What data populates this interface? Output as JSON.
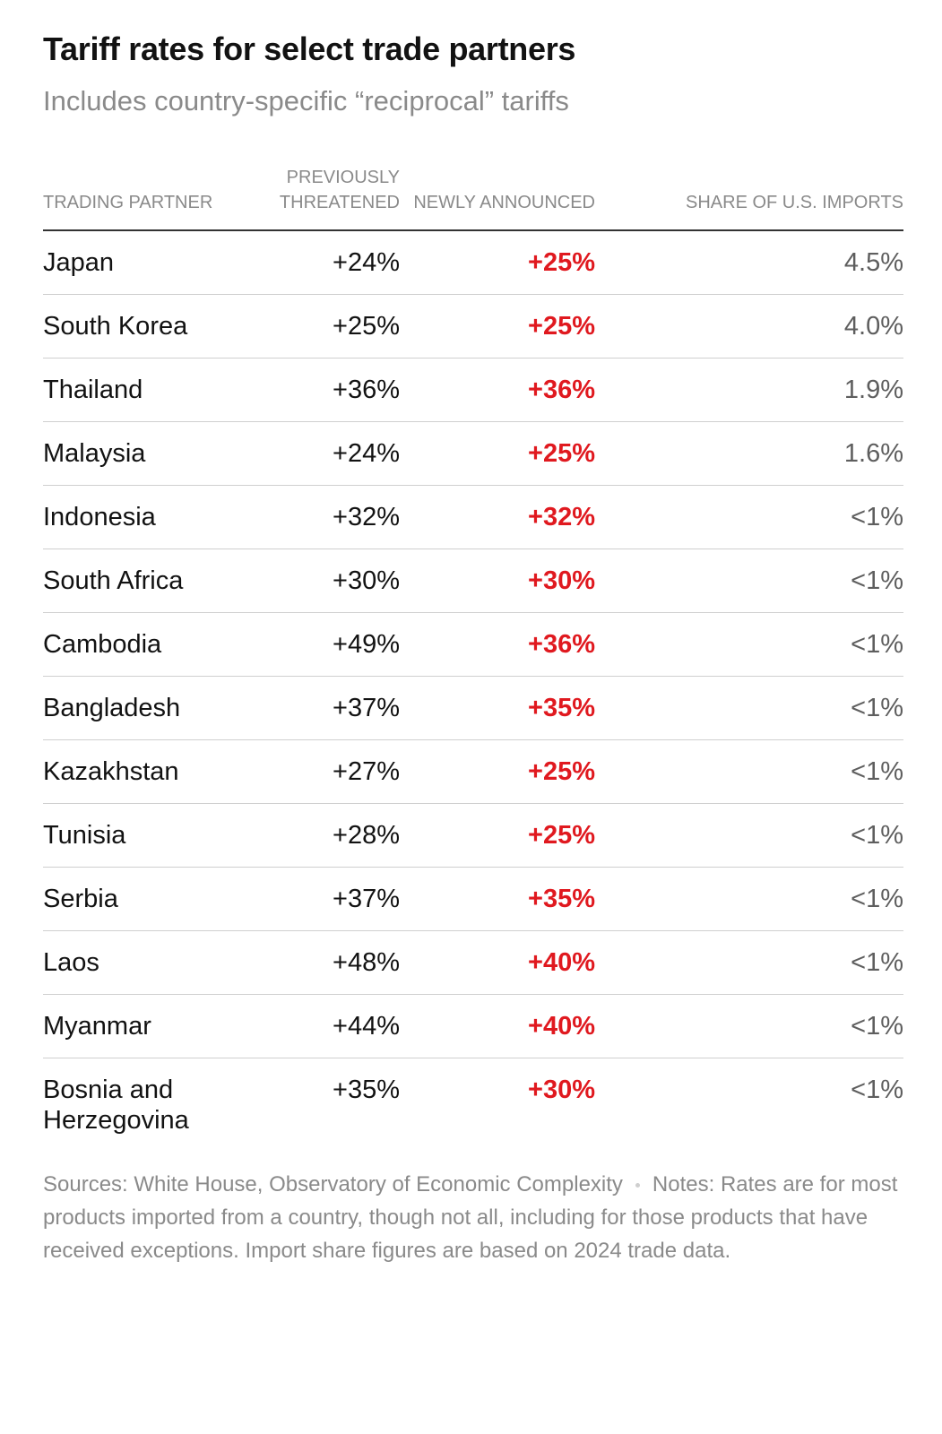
{
  "chart_data": {
    "type": "table",
    "title": "Tariff rates for select trade partners",
    "subtitle": "Includes country-specific “reciprocal” tariffs",
    "columns": [
      "TRADING PARTNER",
      "PREVIOUSLY THREATENED",
      "NEWLY ANNOUNCED",
      "SHARE OF U.S. IMPORTS"
    ],
    "rows": [
      {
        "partner": "Japan",
        "previously_threatened": "+24%",
        "newly_announced": "+25%",
        "share_of_imports": "4.5%"
      },
      {
        "partner": "South Korea",
        "previously_threatened": "+25%",
        "newly_announced": "+25%",
        "share_of_imports": "4.0%"
      },
      {
        "partner": "Thailand",
        "previously_threatened": "+36%",
        "newly_announced": "+36%",
        "share_of_imports": "1.9%"
      },
      {
        "partner": "Malaysia",
        "previously_threatened": "+24%",
        "newly_announced": "+25%",
        "share_of_imports": "1.6%"
      },
      {
        "partner": "Indonesia",
        "previously_threatened": "+32%",
        "newly_announced": "+32%",
        "share_of_imports": "<1%"
      },
      {
        "partner": "South Africa",
        "previously_threatened": "+30%",
        "newly_announced": "+30%",
        "share_of_imports": "<1%"
      },
      {
        "partner": "Cambodia",
        "previously_threatened": "+49%",
        "newly_announced": "+36%",
        "share_of_imports": "<1%"
      },
      {
        "partner": "Bangladesh",
        "previously_threatened": "+37%",
        "newly_announced": "+35%",
        "share_of_imports": "<1%"
      },
      {
        "partner": "Kazakhstan",
        "previously_threatened": "+27%",
        "newly_announced": "+25%",
        "share_of_imports": "<1%"
      },
      {
        "partner": "Tunisia",
        "previously_threatened": "+28%",
        "newly_announced": "+25%",
        "share_of_imports": "<1%"
      },
      {
        "partner": "Serbia",
        "previously_threatened": "+37%",
        "newly_announced": "+35%",
        "share_of_imports": "<1%"
      },
      {
        "partner": "Laos",
        "previously_threatened": "+48%",
        "newly_announced": "+40%",
        "share_of_imports": "<1%"
      },
      {
        "partner": "Myanmar",
        "previously_threatened": "+44%",
        "newly_announced": "+40%",
        "share_of_imports": "<1%"
      },
      {
        "partner": "Bosnia and Herzegovina",
        "previously_threatened": "+35%",
        "newly_announced": "+30%",
        "share_of_imports": "<1%"
      }
    ],
    "highlight_color": "#e0191f"
  },
  "header": {
    "col1": "Trading partner",
    "col2": "Previously threatened",
    "col3": "Newly announced",
    "col4": "Share of U.S. imports"
  },
  "footnote": {
    "sources": "Sources: White House, Observatory of Economic Complexity",
    "notes": "Notes: Rates are for most products imported from a country, though not all, including for those products that have received exceptions. Import share figures are based on 2024 trade data."
  }
}
